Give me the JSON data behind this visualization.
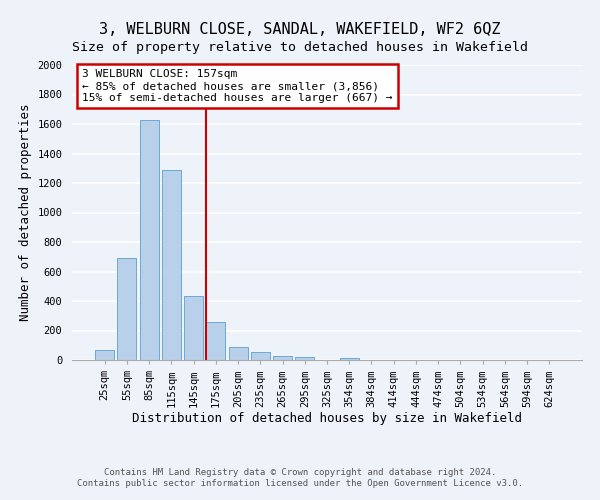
{
  "title": "3, WELBURN CLOSE, SANDAL, WAKEFIELD, WF2 6QZ",
  "subtitle": "Size of property relative to detached houses in Wakefield",
  "xlabel": "Distribution of detached houses by size in Wakefield",
  "ylabel": "Number of detached properties",
  "bar_labels": [
    "25sqm",
    "55sqm",
    "85sqm",
    "115sqm",
    "145sqm",
    "175sqm",
    "205sqm",
    "235sqm",
    "265sqm",
    "295sqm",
    "325sqm",
    "354sqm",
    "384sqm",
    "414sqm",
    "444sqm",
    "474sqm",
    "504sqm",
    "534sqm",
    "564sqm",
    "594sqm",
    "624sqm"
  ],
  "bar_values": [
    65,
    690,
    1630,
    1285,
    435,
    255,
    90,
    52,
    28,
    20,
    0,
    12,
    0,
    0,
    0,
    0,
    0,
    0,
    0,
    0,
    0
  ],
  "bar_color": "#b8d0ea",
  "bar_edge_color": "#6aaad4",
  "ylim": [
    0,
    2000
  ],
  "yticks": [
    0,
    200,
    400,
    600,
    800,
    1000,
    1200,
    1400,
    1600,
    1800,
    2000
  ],
  "vline_x": 4.57,
  "vline_color": "#cc0000",
  "annotation_title": "3 WELBURN CLOSE: 157sqm",
  "annotation_line1": "← 85% of detached houses are smaller (3,856)",
  "annotation_line2": "15% of semi-detached houses are larger (667) →",
  "annotation_box_color": "#cc0000",
  "footer_line1": "Contains HM Land Registry data © Crown copyright and database right 2024.",
  "footer_line2": "Contains public sector information licensed under the Open Government Licence v3.0.",
  "background_color": "#eef2f9",
  "grid_color": "#ffffff",
  "title_fontsize": 11,
  "axis_label_fontsize": 9,
  "tick_fontsize": 7.5,
  "annotation_fontsize": 8,
  "footer_fontsize": 6.5
}
